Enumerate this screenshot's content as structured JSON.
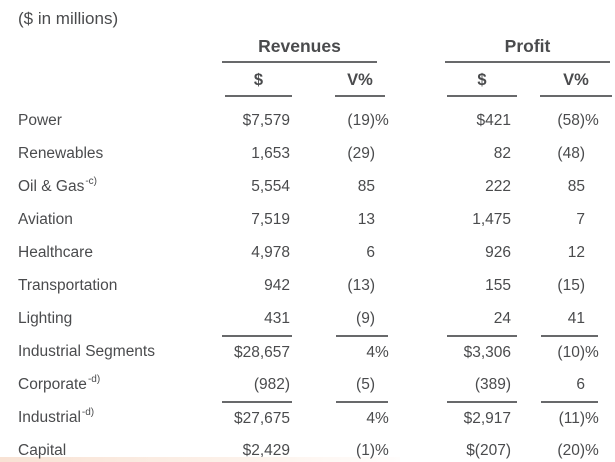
{
  "caption": "($ in millions)",
  "table": {
    "group_headers": {
      "revenues": "Revenues",
      "profit": "Profit"
    },
    "column_headers": {
      "dollar": "$",
      "variance": "V%"
    },
    "rows": [
      {
        "label": "Power",
        "rev_d": "$7,579",
        "rev_v": "(19)",
        "rev_v_pct": "%",
        "prof_d": "$421",
        "prof_v": "(58)",
        "prof_v_pct": "%"
      },
      {
        "label": "Renewables",
        "rev_d": "1,653",
        "rev_v": "(29)",
        "prof_d": "82",
        "prof_v": "(48)"
      },
      {
        "label": "Oil & Gas",
        "sup": "-c)",
        "rev_d": "5,554",
        "rev_v": "85",
        "prof_d": "222",
        "prof_v": "85"
      },
      {
        "label": "Aviation",
        "rev_d": "7,519",
        "rev_v": "13",
        "prof_d": "1,475",
        "prof_v": "7"
      },
      {
        "label": "Healthcare",
        "rev_d": "4,978",
        "rev_v": "6",
        "prof_d": "926",
        "prof_v": "12"
      },
      {
        "label": "Transportation",
        "rev_d": "942",
        "rev_v": "(13)",
        "prof_d": "155",
        "prof_v": "(15)"
      },
      {
        "label": "Lighting",
        "rev_d": "431",
        "rev_v": "(9)",
        "prof_d": "24",
        "prof_v": "41"
      },
      {
        "label": "Industrial Segments",
        "rev_d": "$28,657",
        "rev_v": "4",
        "rev_v_pct": "%",
        "prof_d": "$3,306",
        "prof_v": "(10)",
        "prof_v_pct": "%"
      },
      {
        "label": "Corporate",
        "sup": "-d)",
        "rev_d": "(982)",
        "rev_v": "(5)",
        "prof_d": "(389)",
        "prof_v": "6"
      },
      {
        "label": "Industrial",
        "sup": "-d)",
        "rev_d": "$27,675",
        "rev_v": "4",
        "rev_v_pct": "%",
        "prof_d": "$2,917",
        "prof_v": "(11)",
        "prof_v_pct": "%"
      },
      {
        "label": "Capital",
        "rev_d": "$2,429",
        "rev_v": "(1)",
        "rev_v_pct": "%",
        "prof_d": "$(207)",
        "prof_v": "(20)",
        "prof_v_pct": "%"
      }
    ]
  },
  "colors": {
    "text": "#4a4b4d",
    "rule": "#68696b",
    "background": "#ffffff",
    "bottom_strip": "#f8e2d4"
  }
}
